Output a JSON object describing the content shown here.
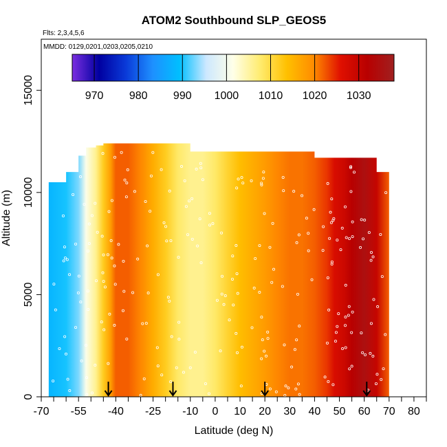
{
  "chart_data": {
    "type": "heatmap",
    "title": "ATOM2 Southbound SLP_GEOS5",
    "notes": [
      "Flts: 2,3,4,5,6",
      "MMDD: 0129,0201,0203,0205,0210"
    ],
    "xlabel": "Latitude (deg N)",
    "ylabel": "Altitude (m)",
    "xlim": [
      -70,
      85
    ],
    "ylim": [
      0,
      17500
    ],
    "x_ticks": [
      -70,
      -55,
      -40,
      -25,
      -10,
      0,
      10,
      20,
      30,
      40,
      50,
      60,
      70,
      80
    ],
    "x_tick_labels": [
      "-70",
      "-55",
      "-40",
      "-25",
      "-10",
      "0",
      "10",
      "20",
      "30",
      "40",
      "50",
      "60",
      "70",
      "80"
    ],
    "x_minor_ticks": [
      -65,
      -60,
      -50,
      -45,
      -35,
      -30,
      -20,
      -15,
      -5,
      5,
      15,
      25,
      35,
      45,
      55,
      65,
      75,
      85
    ],
    "y_ticks": [
      0,
      5000,
      10000,
      15000
    ],
    "y_tick_labels": [
      "0",
      "5000",
      "10000",
      "15000"
    ],
    "colorbar": {
      "range": [
        965,
        1038
      ],
      "ticks": [
        970,
        980,
        990,
        1000,
        1010,
        1020,
        1030
      ],
      "tick_labels": [
        "970",
        "980",
        "990",
        "1000",
        "1010",
        "1020",
        "1030"
      ],
      "colors": [
        "#7b2fe0",
        "#0000a0",
        "#0a3ad8",
        "#1e90ff",
        "#00bfff",
        "#cde8ff",
        "#ffffe8",
        "#ffec70",
        "#ffc000",
        "#ff8c00",
        "#e01000",
        "#b80000",
        "#a02020"
      ]
    },
    "arrows_at_latitude": [
      -43,
      -17,
      20,
      61
    ],
    "profile": {
      "latitude": [
        -67,
        -60,
        -55,
        -52,
        -48,
        -45,
        -42,
        -40,
        -35,
        -30,
        -25,
        -20,
        -15,
        -10,
        -5,
        0,
        5,
        10,
        15,
        20,
        25,
        30,
        35,
        40,
        45,
        48,
        52,
        55,
        60,
        65,
        70
      ],
      "slp_hpa": [
        988,
        990,
        993,
        1001,
        1006,
        1012,
        1018,
        1022,
        1022,
        1020,
        1016,
        1012,
        1008,
        1006,
        1006,
        1008,
        1011,
        1014,
        1016,
        1018,
        1020,
        1021,
        1021,
        1022,
        1024,
        1027,
        1029,
        1032,
        1035,
        1030,
        1022
      ],
      "top_altitude_m": [
        10500,
        11000,
        11800,
        12200,
        12300,
        12400,
        12400,
        12400,
        12400,
        12400,
        12400,
        12400,
        12400,
        12000,
        12000,
        12000,
        12000,
        12000,
        12000,
        12000,
        12000,
        12000,
        12000,
        11700,
        11700,
        11700,
        11700,
        11700,
        11700,
        11000,
        10000
      ]
    }
  }
}
